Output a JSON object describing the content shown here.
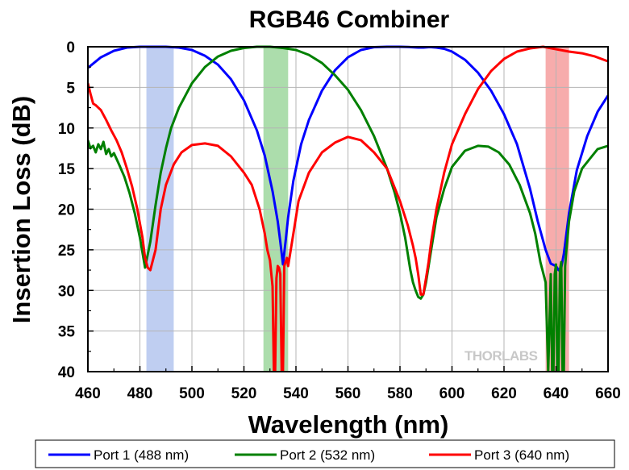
{
  "chart_data": {
    "type": "line",
    "title": "RGB46 Combiner",
    "xlabel": "Wavelength (nm)",
    "ylabel": "Insertion Loss (dB)",
    "xlim": [
      460,
      660
    ],
    "ylim": [
      0,
      40
    ],
    "y_inverted": true,
    "grid": true,
    "legend_position": "bottom",
    "x_ticks": [
      "460",
      "480",
      "500",
      "520",
      "540",
      "560",
      "580",
      "600",
      "620",
      "640",
      "660"
    ],
    "y_ticks": [
      "0",
      "5",
      "10",
      "15",
      "20",
      "25",
      "30",
      "35",
      "40"
    ],
    "watermark": "THORLABS",
    "bands": [
      {
        "name": "488 nm band",
        "x0": 482.5,
        "x1": 493,
        "color": "#b8c9f0"
      },
      {
        "name": "532 nm band",
        "x0": 527.5,
        "x1": 537,
        "color": "#a3d9a3"
      },
      {
        "name": "640 nm band",
        "x0": 636,
        "x1": 645,
        "color": "#f6a3a3"
      }
    ],
    "series": [
      {
        "name": "Port 1 (488 nm)",
        "color": "#0000ff",
        "x": [
          460,
          465,
          470,
          475,
          480,
          485,
          490,
          495,
          500,
          505,
          510,
          515,
          520,
          525,
          528,
          531,
          533,
          534,
          535,
          536,
          537,
          539,
          542,
          545,
          550,
          555,
          560,
          565,
          570,
          575,
          580,
          583,
          585,
          587,
          588,
          589,
          590,
          591,
          592,
          594,
          597,
          600,
          605,
          610,
          615,
          620,
          625,
          630,
          633,
          636,
          638,
          640,
          641,
          642,
          643,
          644,
          645,
          648,
          652,
          656,
          660
        ],
        "y": [
          2.6,
          1.3,
          0.5,
          0.1,
          0,
          0,
          0,
          0.1,
          0.4,
          1.1,
          2.2,
          4,
          6.6,
          10.3,
          13.4,
          17.8,
          21.5,
          24,
          26.8,
          24,
          21,
          16.5,
          12,
          9,
          5.4,
          2.9,
          1.3,
          0.4,
          0.05,
          0,
          0,
          0.02,
          0.06,
          0.1,
          0.1,
          0.1,
          0.08,
          0.05,
          0.05,
          0.1,
          0.25,
          0.6,
          1.6,
          3.2,
          5.4,
          8.3,
          12,
          17.5,
          21.5,
          25,
          26.7,
          27,
          27.5,
          27.2,
          25.5,
          23,
          20.5,
          15.2,
          11,
          8,
          6
        ]
      },
      {
        "name": "Port 2 (532 nm)",
        "color": "#008000",
        "x": [
          460,
          461,
          462,
          463,
          464,
          465,
          466,
          467,
          468,
          469,
          470,
          472,
          474,
          476,
          478,
          480,
          482,
          484,
          486,
          488,
          490,
          492,
          495,
          500,
          505,
          510,
          515,
          520,
          525,
          530,
          535,
          540,
          545,
          550,
          555,
          560,
          565,
          570,
          575,
          578,
          580,
          582,
          584,
          585,
          586,
          587,
          588,
          589,
          590,
          591,
          592,
          594,
          597,
          600,
          605,
          610,
          614,
          618,
          622,
          626,
          630,
          632,
          634,
          636,
          637,
          638,
          638.5,
          639,
          639.5,
          640,
          640.5,
          641,
          641.5,
          642,
          642.5,
          643,
          643.5,
          644,
          645,
          647,
          650,
          653,
          656,
          660
        ],
        "y": [
          11.5,
          12.5,
          12.2,
          13,
          12,
          12.6,
          11.7,
          13.2,
          12.6,
          13.5,
          13.1,
          14.5,
          16,
          18,
          20.5,
          23.5,
          27.2,
          24,
          19.5,
          15.5,
          12.5,
          10,
          7.5,
          4.5,
          2.5,
          1.2,
          0.5,
          0.15,
          0,
          0,
          0.15,
          0.4,
          1,
          2,
          3.5,
          5.3,
          7.8,
          11,
          15,
          18,
          20.5,
          23.5,
          27.5,
          29,
          30,
          30.8,
          31,
          30.5,
          29,
          27,
          25,
          21,
          17.5,
          14.8,
          12.8,
          12.2,
          12.3,
          13,
          14.5,
          17,
          20.5,
          23,
          26.5,
          29,
          40,
          28,
          40,
          40,
          28,
          26.8,
          40,
          40,
          27.5,
          26.5,
          40,
          40,
          27,
          25,
          21.5,
          17.8,
          15,
          13.8,
          12.6,
          12.2
        ]
      },
      {
        "name": "Port 3 (640 nm)",
        "color": "#ff0000",
        "x": [
          460,
          461,
          462,
          463,
          465,
          467,
          469,
          471,
          473,
          475,
          477,
          479,
          481,
          482,
          483,
          484,
          486,
          488,
          490,
          493,
          496,
          500,
          505,
          510,
          515,
          520,
          523,
          526,
          528,
          529,
          530,
          531,
          531.5,
          532,
          532.5,
          533,
          533.5,
          534,
          534.5,
          535,
          535.5,
          536,
          536.5,
          537,
          539,
          541,
          545,
          550,
          555,
          560,
          565,
          570,
          575,
          580,
          583,
          585,
          586,
          587,
          588,
          589,
          590,
          591,
          592,
          594,
          597,
          600,
          605,
          610,
          615,
          620,
          625,
          630,
          635,
          640,
          645,
          650,
          655,
          660
        ],
        "y": [
          4.5,
          5.8,
          7,
          7.2,
          7.8,
          9,
          10.3,
          11.5,
          13,
          15,
          17.2,
          20,
          23.5,
          26,
          27.2,
          27.5,
          25,
          20,
          17,
          14.5,
          13,
          12.1,
          11.9,
          12.2,
          13.5,
          15.5,
          17,
          20,
          23,
          25,
          26.3,
          29.5,
          40,
          40,
          28.5,
          27,
          27.2,
          28,
          40,
          40,
          27,
          26.5,
          26,
          27,
          23,
          19,
          15.5,
          13,
          11.8,
          11.1,
          11.5,
          13,
          15,
          19,
          22,
          24.5,
          26,
          28,
          30.5,
          30.5,
          28.5,
          26.5,
          24,
          20,
          15.5,
          12,
          8.3,
          5.2,
          3,
          1.5,
          0.6,
          0.2,
          0,
          0.3,
          0.6,
          0.8,
          1.2,
          1.8
        ]
      }
    ]
  }
}
